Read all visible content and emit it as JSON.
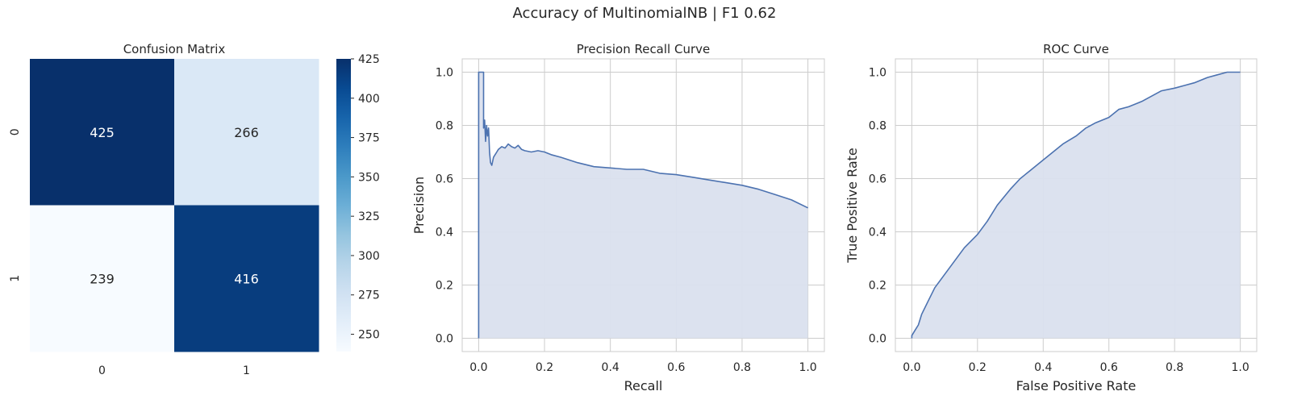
{
  "suptitle": "Accuracy of MultinomialNB | F1 0.62",
  "chart_data": [
    {
      "type": "heatmap",
      "title": "Confusion Matrix",
      "row_labels": [
        "0",
        "1"
      ],
      "col_labels": [
        "0",
        "1"
      ],
      "values": [
        [
          425,
          266
        ],
        [
          239,
          416
        ]
      ],
      "colormap": "Blues",
      "colorbar": {
        "min": 239,
        "max": 425,
        "ticks": [
          "250",
          "275",
          "300",
          "325",
          "350",
          "375",
          "400",
          "425"
        ]
      }
    },
    {
      "type": "area",
      "title": "Precision Recall Curve",
      "xlabel": "Recall",
      "ylabel": "Precision",
      "xlim": [
        -0.05,
        1.05
      ],
      "ylim": [
        -0.05,
        1.05
      ],
      "xticks": [
        "0.0",
        "0.2",
        "0.4",
        "0.6",
        "0.8",
        "1.0"
      ],
      "yticks": [
        "0.0",
        "0.2",
        "0.4",
        "0.6",
        "0.8",
        "1.0"
      ],
      "grid": true,
      "line_color": "#4c72b0",
      "fill_color": "#dae0ee",
      "series": [
        {
          "x": [
            0.0,
            0.0,
            0.015,
            0.015,
            0.018,
            0.021,
            0.024,
            0.027,
            0.03,
            0.033,
            0.036,
            0.04,
            0.045,
            0.05,
            0.055,
            0.06,
            0.07,
            0.08,
            0.09,
            0.1,
            0.11,
            0.12,
            0.13,
            0.14,
            0.16,
            0.18,
            0.2,
            0.22,
            0.25,
            0.3,
            0.35,
            0.4,
            0.45,
            0.5,
            0.55,
            0.6,
            0.65,
            0.7,
            0.75,
            0.8,
            0.85,
            0.9,
            0.95,
            1.0
          ],
          "y": [
            0.0,
            1.0,
            1.0,
            0.79,
            0.82,
            0.74,
            0.8,
            0.76,
            0.79,
            0.7,
            0.66,
            0.65,
            0.68,
            0.69,
            0.7,
            0.71,
            0.72,
            0.715,
            0.73,
            0.72,
            0.715,
            0.725,
            0.71,
            0.705,
            0.7,
            0.705,
            0.7,
            0.69,
            0.68,
            0.66,
            0.645,
            0.64,
            0.635,
            0.635,
            0.62,
            0.615,
            0.605,
            0.595,
            0.585,
            0.575,
            0.56,
            0.54,
            0.52,
            0.49
          ]
        }
      ]
    },
    {
      "type": "area",
      "title": "ROC Curve",
      "xlabel": "False Positive Rate",
      "ylabel": "True Positive Rate",
      "xlim": [
        -0.05,
        1.05
      ],
      "ylim": [
        -0.05,
        1.05
      ],
      "xticks": [
        "0.0",
        "0.2",
        "0.4",
        "0.6",
        "0.8",
        "1.0"
      ],
      "yticks": [
        "0.0",
        "0.2",
        "0.4",
        "0.6",
        "0.8",
        "1.0"
      ],
      "grid": true,
      "line_color": "#4c72b0",
      "fill_color": "#dae0ee",
      "series": [
        {
          "x": [
            0.0,
            0.0,
            0.01,
            0.02,
            0.03,
            0.05,
            0.07,
            0.1,
            0.13,
            0.16,
            0.2,
            0.23,
            0.26,
            0.3,
            0.33,
            0.36,
            0.4,
            0.43,
            0.46,
            0.5,
            0.53,
            0.56,
            0.6,
            0.63,
            0.66,
            0.7,
            0.73,
            0.76,
            0.8,
            0.83,
            0.86,
            0.9,
            0.93,
            0.96,
            1.0
          ],
          "y": [
            0.0,
            0.01,
            0.03,
            0.05,
            0.09,
            0.14,
            0.19,
            0.24,
            0.29,
            0.34,
            0.39,
            0.44,
            0.5,
            0.56,
            0.6,
            0.63,
            0.67,
            0.7,
            0.73,
            0.76,
            0.79,
            0.81,
            0.83,
            0.86,
            0.87,
            0.89,
            0.91,
            0.93,
            0.94,
            0.95,
            0.96,
            0.98,
            0.99,
            1.0,
            1.0
          ]
        }
      ]
    }
  ]
}
